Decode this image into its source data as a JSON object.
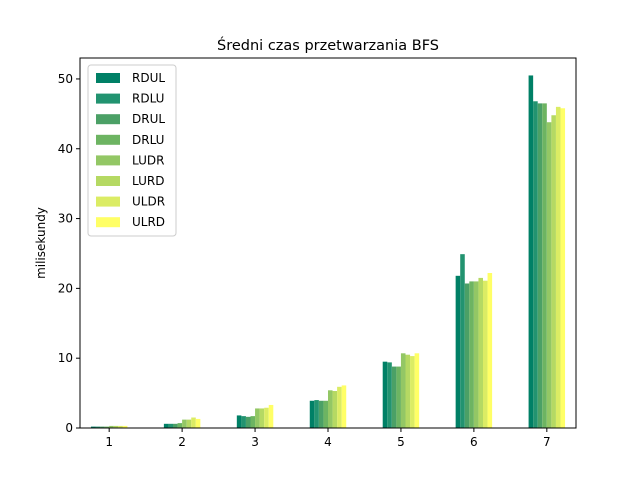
{
  "chart_data": {
    "type": "bar",
    "title": "Średni czas przetwarzania BFS",
    "xlabel": "",
    "ylabel": "milisekundy",
    "categories": [
      "1",
      "2",
      "3",
      "4",
      "5",
      "6",
      "7"
    ],
    "ylim": [
      0,
      53
    ],
    "yticks": [
      0,
      10,
      20,
      30,
      40,
      50
    ],
    "grid": false,
    "legend_position": "top-left",
    "series": [
      {
        "name": "RDUL",
        "color": "#008066",
        "values": [
          0.2,
          0.6,
          1.8,
          3.9,
          9.5,
          21.8,
          50.5
        ]
      },
      {
        "name": "RDLU",
        "color": "#229370",
        "values": [
          0.2,
          0.6,
          1.7,
          4.0,
          9.4,
          24.9,
          46.8
        ]
      },
      {
        "name": "DRUL",
        "color": "#4ba066",
        "values": [
          0.2,
          0.6,
          1.6,
          3.9,
          8.8,
          20.7,
          46.5
        ]
      },
      {
        "name": "DRLU",
        "color": "#6db462",
        "values": [
          0.2,
          0.7,
          1.7,
          3.9,
          8.8,
          21.0,
          46.5
        ]
      },
      {
        "name": "LUDR",
        "color": "#93c765",
        "values": [
          0.3,
          1.2,
          2.8,
          5.4,
          10.7,
          21.0,
          43.8
        ]
      },
      {
        "name": "LURD",
        "color": "#b5d963",
        "values": [
          0.3,
          1.2,
          2.8,
          5.3,
          10.5,
          21.5,
          44.8
        ]
      },
      {
        "name": "ULDR",
        "color": "#dbec64",
        "values": [
          0.3,
          1.5,
          2.9,
          5.9,
          10.3,
          21.1,
          46.0
        ]
      },
      {
        "name": "ULRD",
        "color": "#ffff66",
        "values": [
          0.3,
          1.3,
          3.3,
          6.1,
          10.7,
          22.2,
          45.8
        ]
      }
    ]
  }
}
